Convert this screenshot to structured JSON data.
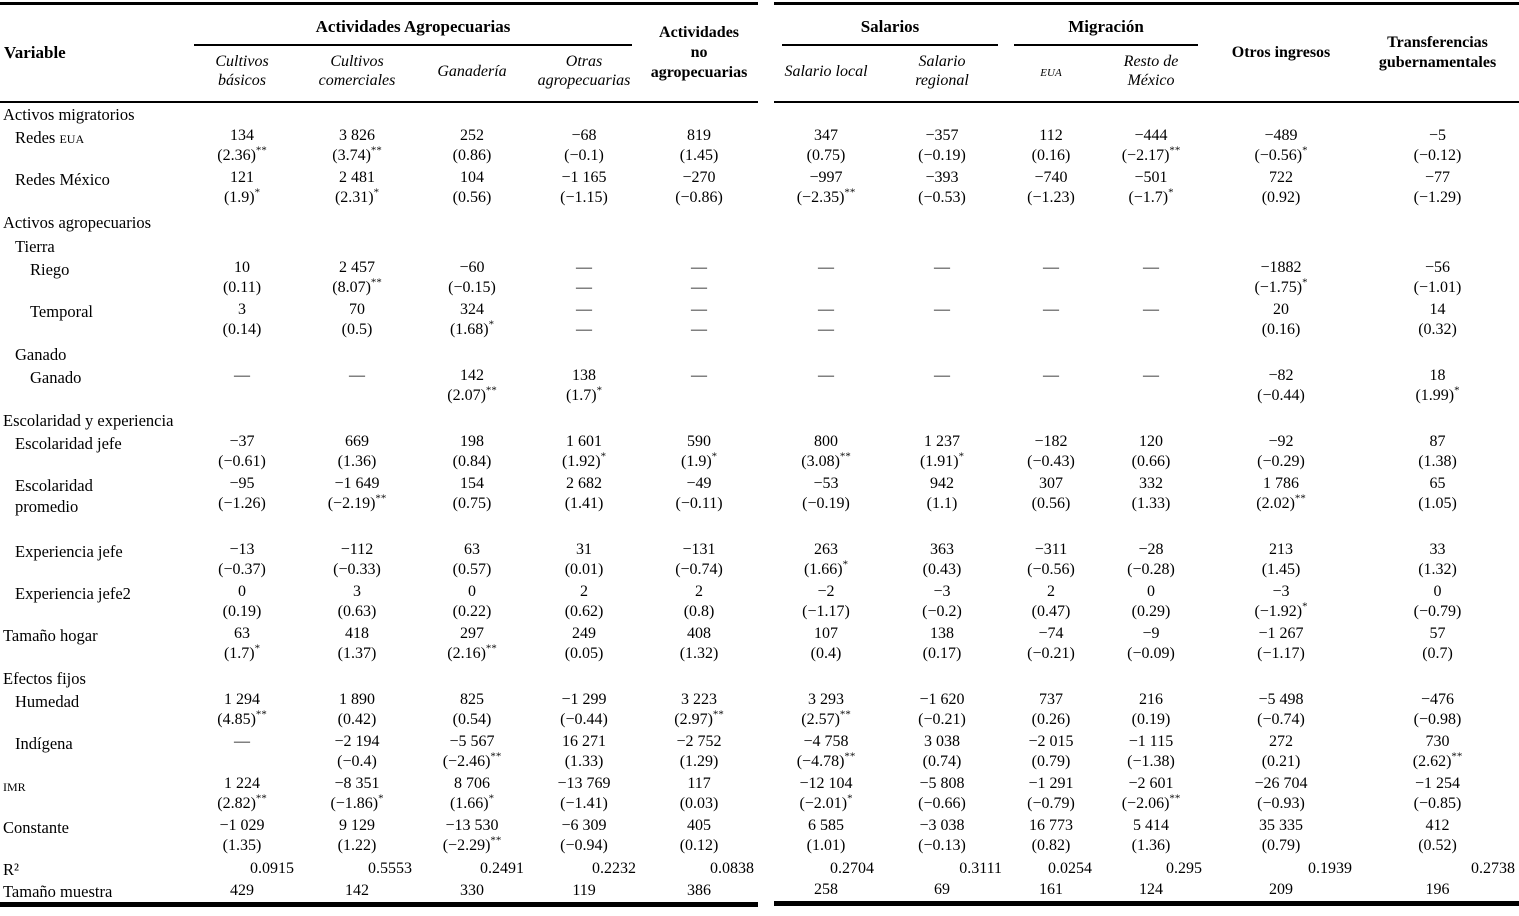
{
  "table": {
    "left": {
      "variable_header": "Variable",
      "group_header": "Actividades Agropecuarias",
      "columns": [
        "Cultivos básicos",
        "Cultivos comerciales",
        "Ganadería",
        "Otras agropecuarias"
      ],
      "no_agro_header": "Actividades no agropecuarias"
    },
    "right": {
      "groups": [
        {
          "label": "Salarios",
          "cols": [
            "Salario local",
            "Salario regional"
          ]
        },
        {
          "label": "Migración",
          "cols": [
            "eua",
            "Resto de México"
          ]
        }
      ],
      "extra_columns": [
        "Otros ingresos",
        "Transferencias gubernamentales"
      ]
    },
    "rows": [
      {
        "type": "section",
        "label": "Activos migratorios",
        "indent": 0
      },
      {
        "type": "data",
        "label": "Redes EUA",
        "sc": [
          "EUA"
        ],
        "indent": 1,
        "left": [
          [
            "134",
            "(2.36)**"
          ],
          [
            "3 826",
            "(3.74)**"
          ],
          [
            "252",
            "(0.86)"
          ],
          [
            "−68",
            "(−0.1)"
          ],
          [
            "819",
            "(1.45)"
          ]
        ],
        "right": [
          [
            "347",
            "(0.75)"
          ],
          [
            "−357",
            "(−0.19)"
          ],
          [
            "112",
            "(0.16)"
          ],
          [
            "−444",
            "(−2.17)**"
          ],
          [
            "−489",
            "(−0.56)*"
          ],
          [
            "−5",
            "(−0.12)"
          ]
        ]
      },
      {
        "type": "data",
        "label": "Redes México",
        "indent": 1,
        "left": [
          [
            "121",
            "(1.9)*"
          ],
          [
            "2 481",
            "(2.31)*"
          ],
          [
            "104",
            "(0.56)"
          ],
          [
            "−1 165",
            "(−1.15)"
          ],
          [
            "−270",
            "(−0.86)"
          ]
        ],
        "right": [
          [
            "−997",
            "(−2.35)**"
          ],
          [
            "−393",
            "(−0.53)"
          ],
          [
            "−740",
            "(−1.23)"
          ],
          [
            "−501",
            "(−1.7)*"
          ],
          [
            "722",
            "(0.92)"
          ],
          [
            "−77",
            "(−1.29)"
          ]
        ]
      },
      {
        "type": "section",
        "label": "Activos agropecuarios",
        "indent": 0
      },
      {
        "type": "section",
        "label": "Tierra",
        "indent": 1
      },
      {
        "type": "data",
        "label": "Riego",
        "indent": 2,
        "left": [
          [
            "10",
            "(0.11)"
          ],
          [
            "2 457",
            "(8.07)**"
          ],
          [
            "−60",
            "(−0.15)"
          ],
          [
            "—",
            "—"
          ],
          [
            "—",
            "—"
          ]
        ],
        "right": [
          [
            "—",
            ""
          ],
          [
            "—",
            ""
          ],
          [
            "—",
            ""
          ],
          [
            "—",
            ""
          ],
          [
            "−1882",
            "(−1.75)*"
          ],
          [
            "−56",
            "(−1.01)"
          ]
        ]
      },
      {
        "type": "data",
        "label": "Temporal",
        "indent": 2,
        "left": [
          [
            "3",
            "(0.14)"
          ],
          [
            "70",
            "(0.5)"
          ],
          [
            "324",
            "(1.68)*"
          ],
          [
            "—",
            "—"
          ],
          [
            "—",
            "—"
          ]
        ],
        "right": [
          [
            "—",
            "—"
          ],
          [
            "—",
            ""
          ],
          [
            "—",
            ""
          ],
          [
            "—",
            ""
          ],
          [
            "20",
            "(0.16)"
          ],
          [
            "14",
            "(0.32)"
          ]
        ]
      },
      {
        "type": "section",
        "label": "Ganado",
        "indent": 1
      },
      {
        "type": "data",
        "label": "Ganado",
        "indent": 2,
        "left": [
          [
            "—",
            ""
          ],
          [
            "—",
            ""
          ],
          [
            "142",
            "(2.07)**"
          ],
          [
            "138",
            "(1.7)*"
          ],
          [
            "—",
            ""
          ]
        ],
        "right": [
          [
            "—",
            ""
          ],
          [
            "—",
            ""
          ],
          [
            "—",
            ""
          ],
          [
            "—",
            ""
          ],
          [
            "−82",
            "(−0.44)"
          ],
          [
            "18",
            "(1.99)*"
          ]
        ]
      },
      {
        "type": "section",
        "label": "Escolaridad y experiencia",
        "indent": 0
      },
      {
        "type": "data",
        "label": "Escolaridad jefe",
        "indent": 1,
        "left": [
          [
            "−37",
            "(−0.61)"
          ],
          [
            "669",
            "(1.36)"
          ],
          [
            "198",
            "(0.84)"
          ],
          [
            "1 601",
            "(1.92)*"
          ],
          [
            "590",
            "(1.9)*"
          ]
        ],
        "right": [
          [
            "800",
            "(3.08)**"
          ],
          [
            "1 237",
            "(1.91)*"
          ],
          [
            "−182",
            "(−0.43)"
          ],
          [
            "120",
            "(0.66)"
          ],
          [
            "−92",
            "(−0.29)"
          ],
          [
            "87",
            "(1.38)"
          ]
        ]
      },
      {
        "type": "data",
        "label": "Escolaridad promedio",
        "indent": 1,
        "tall": true,
        "left": [
          [
            "−95",
            "(−1.26)"
          ],
          [
            "−1 649",
            "(−2.19)**"
          ],
          [
            "154",
            "(0.75)"
          ],
          [
            "2 682",
            "(1.41)"
          ],
          [
            "−49",
            "(−0.11)"
          ]
        ],
        "right": [
          [
            "−53",
            "(−0.19)"
          ],
          [
            "942",
            "(1.1)"
          ],
          [
            "307",
            "(0.56)"
          ],
          [
            "332",
            "(1.33)"
          ],
          [
            "1 786",
            "(2.02)**"
          ],
          [
            "65",
            "(1.05)"
          ]
        ]
      },
      {
        "type": "data",
        "label": "Experiencia jefe",
        "indent": 1,
        "left": [
          [
            "−13",
            "(−0.37)"
          ],
          [
            "−112",
            "(−0.33)"
          ],
          [
            "63",
            "(0.57)"
          ],
          [
            "31",
            "(0.01)"
          ],
          [
            "−131",
            "(−0.74)"
          ]
        ],
        "right": [
          [
            "263",
            "(1.66)*"
          ],
          [
            "363",
            "(0.43)"
          ],
          [
            "−311",
            "(−0.56)"
          ],
          [
            "−28",
            "(−0.28)"
          ],
          [
            "213",
            "(1.45)"
          ],
          [
            "33",
            "(1.32)"
          ]
        ]
      },
      {
        "type": "data",
        "label": "Experiencia jefe2",
        "indent": 1,
        "left": [
          [
            "0",
            "(0.19)"
          ],
          [
            "3",
            "(0.63)"
          ],
          [
            "0",
            "(0.22)"
          ],
          [
            "2",
            "(0.62)"
          ],
          [
            "2",
            "(0.8)"
          ]
        ],
        "right": [
          [
            "−2",
            "(−1.17)"
          ],
          [
            "−3",
            "(−0.2)"
          ],
          [
            "2",
            "(0.47)"
          ],
          [
            "0",
            "(0.29)"
          ],
          [
            "−3",
            "(−1.92)*"
          ],
          [
            "0",
            "(−0.79)"
          ]
        ]
      },
      {
        "type": "data",
        "label": "Tamaño hogar",
        "indent": 0,
        "left": [
          [
            "63",
            "(1.7)*"
          ],
          [
            "418",
            "(1.37)"
          ],
          [
            "297",
            "(2.16)**"
          ],
          [
            "249",
            "(0.05)"
          ],
          [
            "408",
            "(1.32)"
          ]
        ],
        "right": [
          [
            "107",
            "(0.4)"
          ],
          [
            "138",
            "(0.17)"
          ],
          [
            "−74",
            "(−0.21)"
          ],
          [
            "−9",
            "(−0.09)"
          ],
          [
            "−1 267",
            "(−1.17)"
          ],
          [
            "57",
            "(0.7)"
          ]
        ]
      },
      {
        "type": "section",
        "label": "Efectos fijos",
        "indent": 0
      },
      {
        "type": "data",
        "label": "Humedad",
        "indent": 1,
        "left": [
          [
            "1 294",
            "(4.85)**"
          ],
          [
            "1 890",
            "(0.42)"
          ],
          [
            "825",
            "(0.54)"
          ],
          [
            "−1 299",
            "(−0.44)"
          ],
          [
            "3 223",
            "(2.97)**"
          ]
        ],
        "right": [
          [
            "3 293",
            "(2.57)**"
          ],
          [
            "−1 620",
            "(−0.21)"
          ],
          [
            "737",
            "(0.26)"
          ],
          [
            "216",
            "(0.19)"
          ],
          [
            "−5 498",
            "(−0.74)"
          ],
          [
            "−476",
            "(−0.98)"
          ]
        ]
      },
      {
        "type": "data",
        "label": "Indígena",
        "indent": 1,
        "left": [
          [
            "—",
            ""
          ],
          [
            "−2 194",
            "(−0.4)"
          ],
          [
            "−5 567",
            "(−2.46)**"
          ],
          [
            "16 271",
            "(1.33)"
          ],
          [
            "−2 752",
            "(1.29)"
          ]
        ],
        "right": [
          [
            "−4 758",
            "(−4.78)**"
          ],
          [
            "3 038",
            "(0.74)"
          ],
          [
            "−2 015",
            "(0.79)"
          ],
          [
            "−1 115",
            "(−1.38)"
          ],
          [
            "272",
            "(0.21)"
          ],
          [
            "730",
            "(2.62)**"
          ]
        ]
      },
      {
        "type": "data",
        "label": "IMR",
        "sc": [
          "IMR"
        ],
        "indent": 0,
        "left": [
          [
            "1 224",
            "(2.82)**"
          ],
          [
            "−8 351",
            "(−1.86)*"
          ],
          [
            "8 706",
            "(1.66)*"
          ],
          [
            "−13 769",
            "(−1.41)"
          ],
          [
            "117",
            "(0.03)"
          ]
        ],
        "right": [
          [
            "−12 104",
            "(−2.01)*"
          ],
          [
            "−5 808",
            "(−0.66)"
          ],
          [
            "−1 291",
            "(−0.79)"
          ],
          [
            "−2 601",
            "(−2.06)**"
          ],
          [
            "−26 704",
            "(−0.93)"
          ],
          [
            "−1 254",
            "(−0.85)"
          ]
        ]
      },
      {
        "type": "data",
        "label": "Constante",
        "indent": 0,
        "left": [
          [
            "−1 029",
            "(1.35)"
          ],
          [
            "9 129",
            "(1.22)"
          ],
          [
            "−13 530",
            "(−2.29)**"
          ],
          [
            "−6 309",
            "(−0.94)"
          ],
          [
            "405",
            "(0.12)"
          ]
        ],
        "right": [
          [
            "6 585",
            "(1.01)"
          ],
          [
            "−3 038",
            "(−0.13)"
          ],
          [
            "16 773",
            "(0.82)"
          ],
          [
            "5 414",
            "(1.36)"
          ],
          [
            "35 335",
            "(0.79)"
          ],
          [
            "412",
            "(0.52)"
          ]
        ]
      },
      {
        "type": "single",
        "variant": "r2",
        "label": "R²",
        "indent": 0,
        "left": [
          [
            "0.0915",
            ""
          ],
          [
            "0.5553",
            ""
          ],
          [
            "0.2491",
            ""
          ],
          [
            "0.2232",
            ""
          ],
          [
            "0.0838",
            ""
          ]
        ],
        "right": [
          [
            "0.2704",
            ""
          ],
          [
            "0.3111",
            ""
          ],
          [
            "0.0254",
            ""
          ],
          [
            "0.295",
            ""
          ],
          [
            "0.1939",
            ""
          ],
          [
            "0.2738",
            ""
          ]
        ]
      },
      {
        "type": "single",
        "variant": "muestra",
        "label": "Tamaño muestra",
        "indent": 0,
        "left": [
          [
            "429",
            ""
          ],
          [
            "142",
            ""
          ],
          [
            "330",
            ""
          ],
          [
            "119",
            ""
          ],
          [
            "386",
            ""
          ]
        ],
        "right": [
          [
            "258",
            ""
          ],
          [
            "69",
            ""
          ],
          [
            "161",
            ""
          ],
          [
            "124",
            ""
          ],
          [
            "209",
            ""
          ],
          [
            "196",
            ""
          ]
        ]
      }
    ]
  }
}
